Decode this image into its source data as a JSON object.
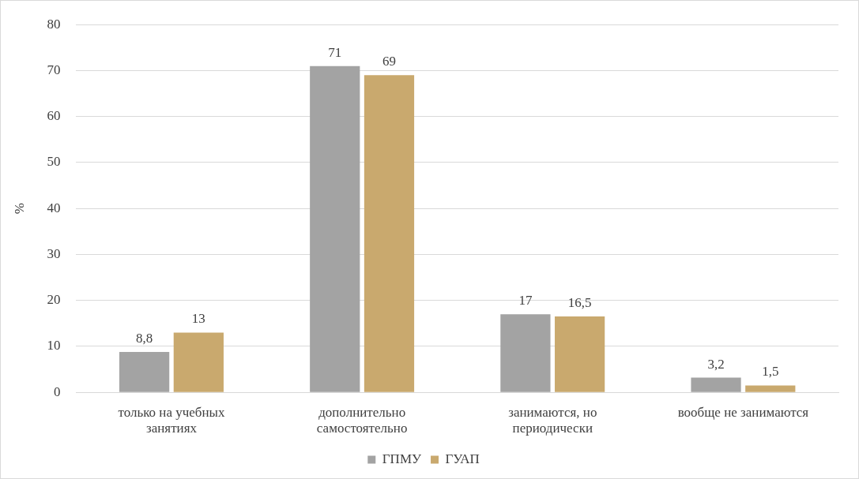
{
  "chart_data": {
    "type": "bar",
    "ylabel": "%",
    "categories": [
      "только на учебных занятиях",
      "дополнительно самостоятельно",
      "занимаются, но периодически",
      "вообще не занимаются"
    ],
    "series": [
      {
        "name": "ГПМУ",
        "color": "#a3a3a3",
        "values": [
          8.8,
          71,
          17,
          3.2
        ],
        "value_labels": [
          "8,8",
          "71",
          "17",
          "3,2"
        ]
      },
      {
        "name": "ГУАП",
        "color": "#c9a96e",
        "values": [
          13,
          69,
          16.5,
          1.5
        ],
        "value_labels": [
          "13",
          "69",
          "16,5",
          "1,5"
        ]
      }
    ],
    "ylim": [
      0,
      80
    ],
    "yticks": [
      0,
      10,
      20,
      30,
      40,
      50,
      60,
      70,
      80
    ],
    "grid": "y",
    "legend": "bottom"
  }
}
